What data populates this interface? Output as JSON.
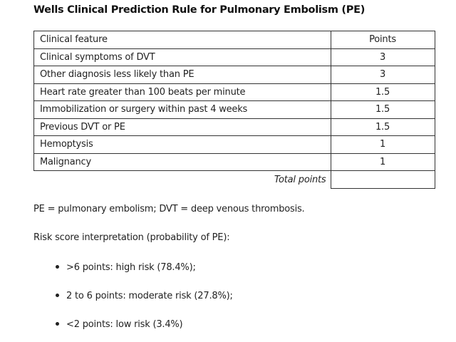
{
  "title": "Wells Clinical Prediction Rule for Pulmonary Embolism (PE)",
  "table": {
    "header": {
      "feature": "Clinical feature",
      "points": "Points"
    },
    "rows": [
      {
        "feature": "Clinical symptoms of DVT",
        "points": "3"
      },
      {
        "feature": "Other diagnosis less likely than PE",
        "points": "3"
      },
      {
        "feature": "Heart rate greater than 100 beats per minute",
        "points": "1.5"
      },
      {
        "feature": "Immobilization or surgery within past 4 weeks",
        "points": "1.5"
      },
      {
        "feature": "Previous DVT or PE",
        "points": "1.5"
      },
      {
        "feature": "Hemoptysis",
        "points": "1"
      },
      {
        "feature": "Malignancy",
        "points": "1"
      }
    ],
    "total_label": "Total points",
    "total_value": ""
  },
  "footnote": "PE = pulmonary embolism; DVT = deep venous thrombosis.",
  "interpretation": {
    "heading": "Risk score interpretation (probability of PE):",
    "items": [
      ">6 points: high risk (78.4%);",
      "2 to 6 points: moderate risk (27.8%);",
      "<2 points: low risk (3.4%)"
    ]
  }
}
